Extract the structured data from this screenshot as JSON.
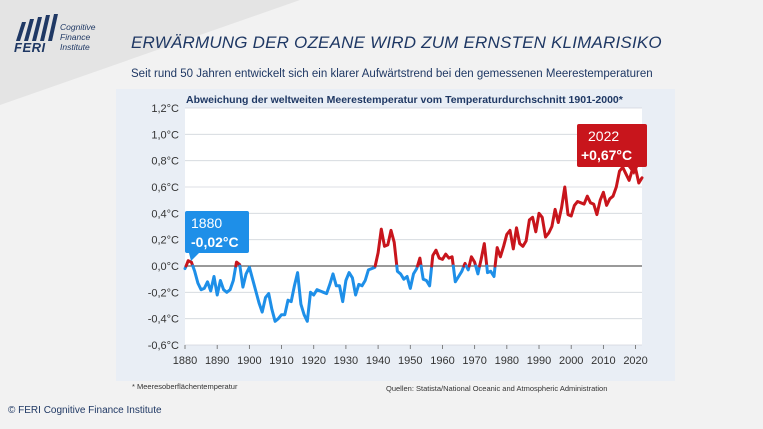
{
  "header": {
    "logo_brand": "FERI",
    "logo_sub_lines": [
      "Cognitive",
      "Finance",
      "Institute"
    ],
    "title": "ERWÄRMUNG DER OZEANE WIRD ZUM ERNSTEN KLIMARISIKO",
    "subtitle": "Seit rund 50 Jahren entwickelt sich ein klarer Aufwärtstrend  bei den gemessenen  Meerestemperaturen"
  },
  "footer": {
    "footnote": "* Meeresoberflächentemperatur",
    "sources": "Quellen: Statista/National Oceanic and Atmospheric Administration",
    "copyright": "© FERI Cognitive Finance Institute"
  },
  "colors": {
    "navy": "#1f3864",
    "cool": "#1e8fe8",
    "warm": "#c8151c",
    "panel": "#e9eef5"
  },
  "chart_data": {
    "type": "line",
    "title": "Abweichung der weltweiten Meerestemperatur  vom Temperaturdurchschnitt  1901-2000*",
    "xlabel": "",
    "ylabel": "",
    "xlim": [
      1880,
      2022
    ],
    "ylim": [
      -0.6,
      1.2
    ],
    "y_ticks": [
      -0.6,
      -0.4,
      -0.2,
      0.0,
      0.2,
      0.4,
      0.6,
      0.8,
      1.0,
      1.2
    ],
    "y_tick_labels": [
      "-0,6°C",
      "-0,4°C",
      "-0,2°C",
      "0,0°C",
      "0,2°C",
      "0,4°C",
      "0,6°C",
      "0,8°C",
      "1,0°C",
      "1,2°C"
    ],
    "x_ticks": [
      1880,
      1890,
      1900,
      1910,
      1920,
      1930,
      1940,
      1950,
      1960,
      1970,
      1980,
      1990,
      2000,
      2010,
      2020
    ],
    "x_tick_labels": [
      "1880",
      "1890",
      "1900",
      "1910",
      "1920",
      "1930",
      "1940",
      "1950",
      "1960",
      "1970",
      "1980",
      "1990",
      "2000",
      "2010",
      "2020"
    ],
    "grid": "horizontal",
    "color_rule": "red above 0, blue below 0",
    "x": [
      1880,
      1881,
      1882,
      1883,
      1884,
      1885,
      1886,
      1887,
      1888,
      1889,
      1890,
      1891,
      1892,
      1893,
      1894,
      1895,
      1896,
      1897,
      1898,
      1899,
      1900,
      1901,
      1902,
      1903,
      1904,
      1905,
      1906,
      1907,
      1908,
      1909,
      1910,
      1911,
      1912,
      1913,
      1914,
      1915,
      1916,
      1917,
      1918,
      1919,
      1920,
      1921,
      1922,
      1923,
      1924,
      1925,
      1926,
      1927,
      1928,
      1929,
      1930,
      1931,
      1932,
      1933,
      1934,
      1935,
      1936,
      1937,
      1938,
      1939,
      1940,
      1941,
      1942,
      1943,
      1944,
      1945,
      1946,
      1947,
      1948,
      1949,
      1950,
      1951,
      1952,
      1953,
      1954,
      1955,
      1956,
      1957,
      1958,
      1959,
      1960,
      1961,
      1962,
      1963,
      1964,
      1965,
      1966,
      1967,
      1968,
      1969,
      1970,
      1971,
      1972,
      1973,
      1974,
      1975,
      1976,
      1977,
      1978,
      1979,
      1980,
      1981,
      1982,
      1983,
      1984,
      1985,
      1986,
      1987,
      1988,
      1989,
      1990,
      1991,
      1992,
      1993,
      1994,
      1995,
      1996,
      1997,
      1998,
      1999,
      2000,
      2001,
      2002,
      2003,
      2004,
      2005,
      2006,
      2007,
      2008,
      2009,
      2010,
      2011,
      2012,
      2013,
      2014,
      2015,
      2016,
      2017,
      2018,
      2019,
      2020,
      2021,
      2022
    ],
    "values": [
      -0.02,
      0.04,
      0.03,
      -0.04,
      -0.13,
      -0.18,
      -0.17,
      -0.12,
      -0.19,
      -0.08,
      -0.22,
      -0.11,
      -0.18,
      -0.2,
      -0.18,
      -0.11,
      0.03,
      0.01,
      -0.16,
      -0.06,
      -0.01,
      -0.1,
      -0.19,
      -0.28,
      -0.35,
      -0.24,
      -0.21,
      -0.33,
      -0.42,
      -0.4,
      -0.37,
      -0.37,
      -0.26,
      -0.27,
      -0.15,
      -0.05,
      -0.29,
      -0.37,
      -0.42,
      -0.2,
      -0.22,
      -0.18,
      -0.19,
      -0.2,
      -0.21,
      -0.14,
      -0.06,
      -0.15,
      -0.15,
      -0.27,
      -0.11,
      -0.05,
      -0.09,
      -0.22,
      -0.14,
      -0.15,
      -0.11,
      -0.03,
      -0.02,
      -0.01,
      0.1,
      0.28,
      0.15,
      0.16,
      0.27,
      0.18,
      -0.04,
      -0.06,
      -0.1,
      -0.08,
      -0.17,
      -0.06,
      -0.02,
      0.06,
      -0.1,
      -0.11,
      -0.15,
      0.08,
      0.12,
      0.06,
      0.05,
      0.09,
      0.06,
      0.07,
      -0.12,
      -0.08,
      -0.04,
      0.02,
      -0.03,
      0.07,
      0.03,
      -0.06,
      0.05,
      0.17,
      -0.05,
      -0.04,
      -0.08,
      0.14,
      0.07,
      0.15,
      0.24,
      0.27,
      0.13,
      0.29,
      0.17,
      0.15,
      0.19,
      0.35,
      0.37,
      0.26,
      0.4,
      0.37,
      0.22,
      0.25,
      0.3,
      0.43,
      0.33,
      0.44,
      0.6,
      0.39,
      0.38,
      0.46,
      0.49,
      0.48,
      0.47,
      0.53,
      0.48,
      0.47,
      0.39,
      0.5,
      0.56,
      0.46,
      0.51,
      0.53,
      0.6,
      0.72,
      0.75,
      0.7,
      0.65,
      0.73,
      0.74,
      0.63,
      0.67
    ]
  },
  "callouts": {
    "start": {
      "year": "1880",
      "value": "-0,02°C",
      "color": "#1e8fe8"
    },
    "end": {
      "year": "2022",
      "value": "+0,67°C",
      "color": "#c8151c"
    }
  }
}
